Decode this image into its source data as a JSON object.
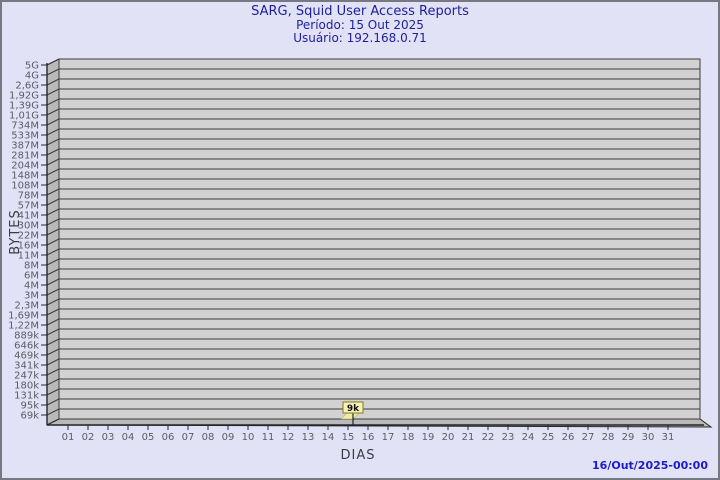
{
  "page": {
    "background": "#e2e2f6",
    "border_color": "#787883"
  },
  "chart_data": {
    "type": "bar",
    "title": "SARG, Squid User Access Reports",
    "subtitle_period": "Período: 15 Out 2025",
    "subtitle_user": "Usuário: 192.168.0.71",
    "xlabel": "DIAS",
    "ylabel": "BYTES",
    "y_scale": "log",
    "grid": true,
    "x_tick_labels": [
      "01",
      "02",
      "03",
      "04",
      "05",
      "06",
      "07",
      "08",
      "09",
      "10",
      "11",
      "12",
      "13",
      "14",
      "15",
      "16",
      "17",
      "18",
      "19",
      "20",
      "21",
      "22",
      "23",
      "24",
      "25",
      "26",
      "27",
      "28",
      "29",
      "30",
      "31"
    ],
    "y_tick_labels": [
      "5G",
      "4G",
      "2,6G",
      "1,92G",
      "1,39G",
      "1,01G",
      "734M",
      "533M",
      "387M",
      "281M",
      "204M",
      "148M",
      "108M",
      "78M",
      "57M",
      "41M",
      "30M",
      "22M",
      "16M",
      "11M",
      "8M",
      "6M",
      "4M",
      "3M",
      "2,3M",
      "1,69M",
      "1,22M",
      "889k",
      "646k",
      "469k",
      "341k",
      "247k",
      "180k",
      "131k",
      "95k",
      "69k"
    ],
    "series": [
      {
        "name": "bytes-per-day",
        "points": [
          {
            "x": "15",
            "label": "9k",
            "value_bytes": 9000
          }
        ]
      }
    ],
    "footer_timestamp": "16/Out/2025-00:00",
    "colors": {
      "title": "#1e1e9c",
      "timestamp": "#1c1cc8",
      "plot_bg": "#d2d2d2",
      "wall": "#b9b9b9",
      "grid_line": "#3c3c3c",
      "axis": "#26262b",
      "tick_label": "#5c5c66",
      "marker_box_bg": "#f7f0bb",
      "marker_box_border": "#8f8f2e",
      "bar": "#f2e8ad"
    }
  }
}
